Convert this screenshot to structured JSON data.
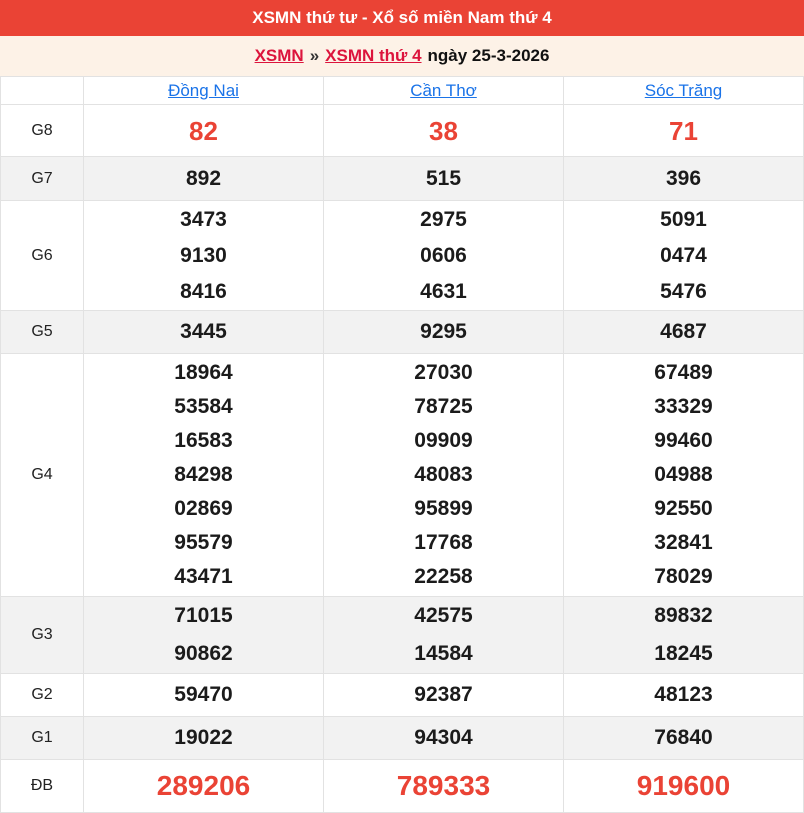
{
  "title_bar": {
    "title": "XSMN thứ tư - Xổ số miền Nam thứ 4"
  },
  "breadcrumb": {
    "home_link": "XSMN",
    "separator": "»",
    "day_link": "XSMN thứ 4",
    "date_text": "ngày 25-3-2026"
  },
  "table": {
    "columns": [
      "Đồng Nai",
      "Cần Thơ",
      "Sóc Trăng"
    ],
    "rows": [
      {
        "label": "G8",
        "cells": [
          "82",
          "38",
          "71"
        ]
      },
      {
        "label": "G7",
        "cells": [
          "892",
          "515",
          "396"
        ]
      },
      {
        "label": "G6",
        "cells": [
          "3473\n9130\n8416",
          "2975\n0606\n4631",
          "5091\n0474\n5476"
        ]
      },
      {
        "label": "G5",
        "cells": [
          "3445",
          "9295",
          "4687"
        ]
      },
      {
        "label": "G4",
        "cells": [
          "18964\n53584\n16583\n84298\n02869\n95579\n43471",
          "27030\n78725\n09909\n48083\n95899\n17768\n22258",
          "67489\n33329\n99460\n04988\n92550\n32841\n78029"
        ]
      },
      {
        "label": "G3",
        "cells": [
          "71015\n90862",
          "42575\n14584",
          "89832\n18245"
        ]
      },
      {
        "label": "G2",
        "cells": [
          "59470",
          "92387",
          "48123"
        ]
      },
      {
        "label": "G1",
        "cells": [
          "19022",
          "94304",
          "76840"
        ]
      },
      {
        "label": "ĐB",
        "cells": [
          "289206",
          "789333",
          "919600"
        ]
      }
    ]
  },
  "colors": {
    "header_bg": "#ea4335",
    "breadcrumb_bg": "#fdf2e7",
    "breadcrumb_link_red": "#dc143c",
    "column_link_blue": "#1a73e8",
    "highlight_number_red": "#ea4335",
    "stripe_row_bg": "#f2f2f2",
    "border": "#e2e2e2"
  }
}
